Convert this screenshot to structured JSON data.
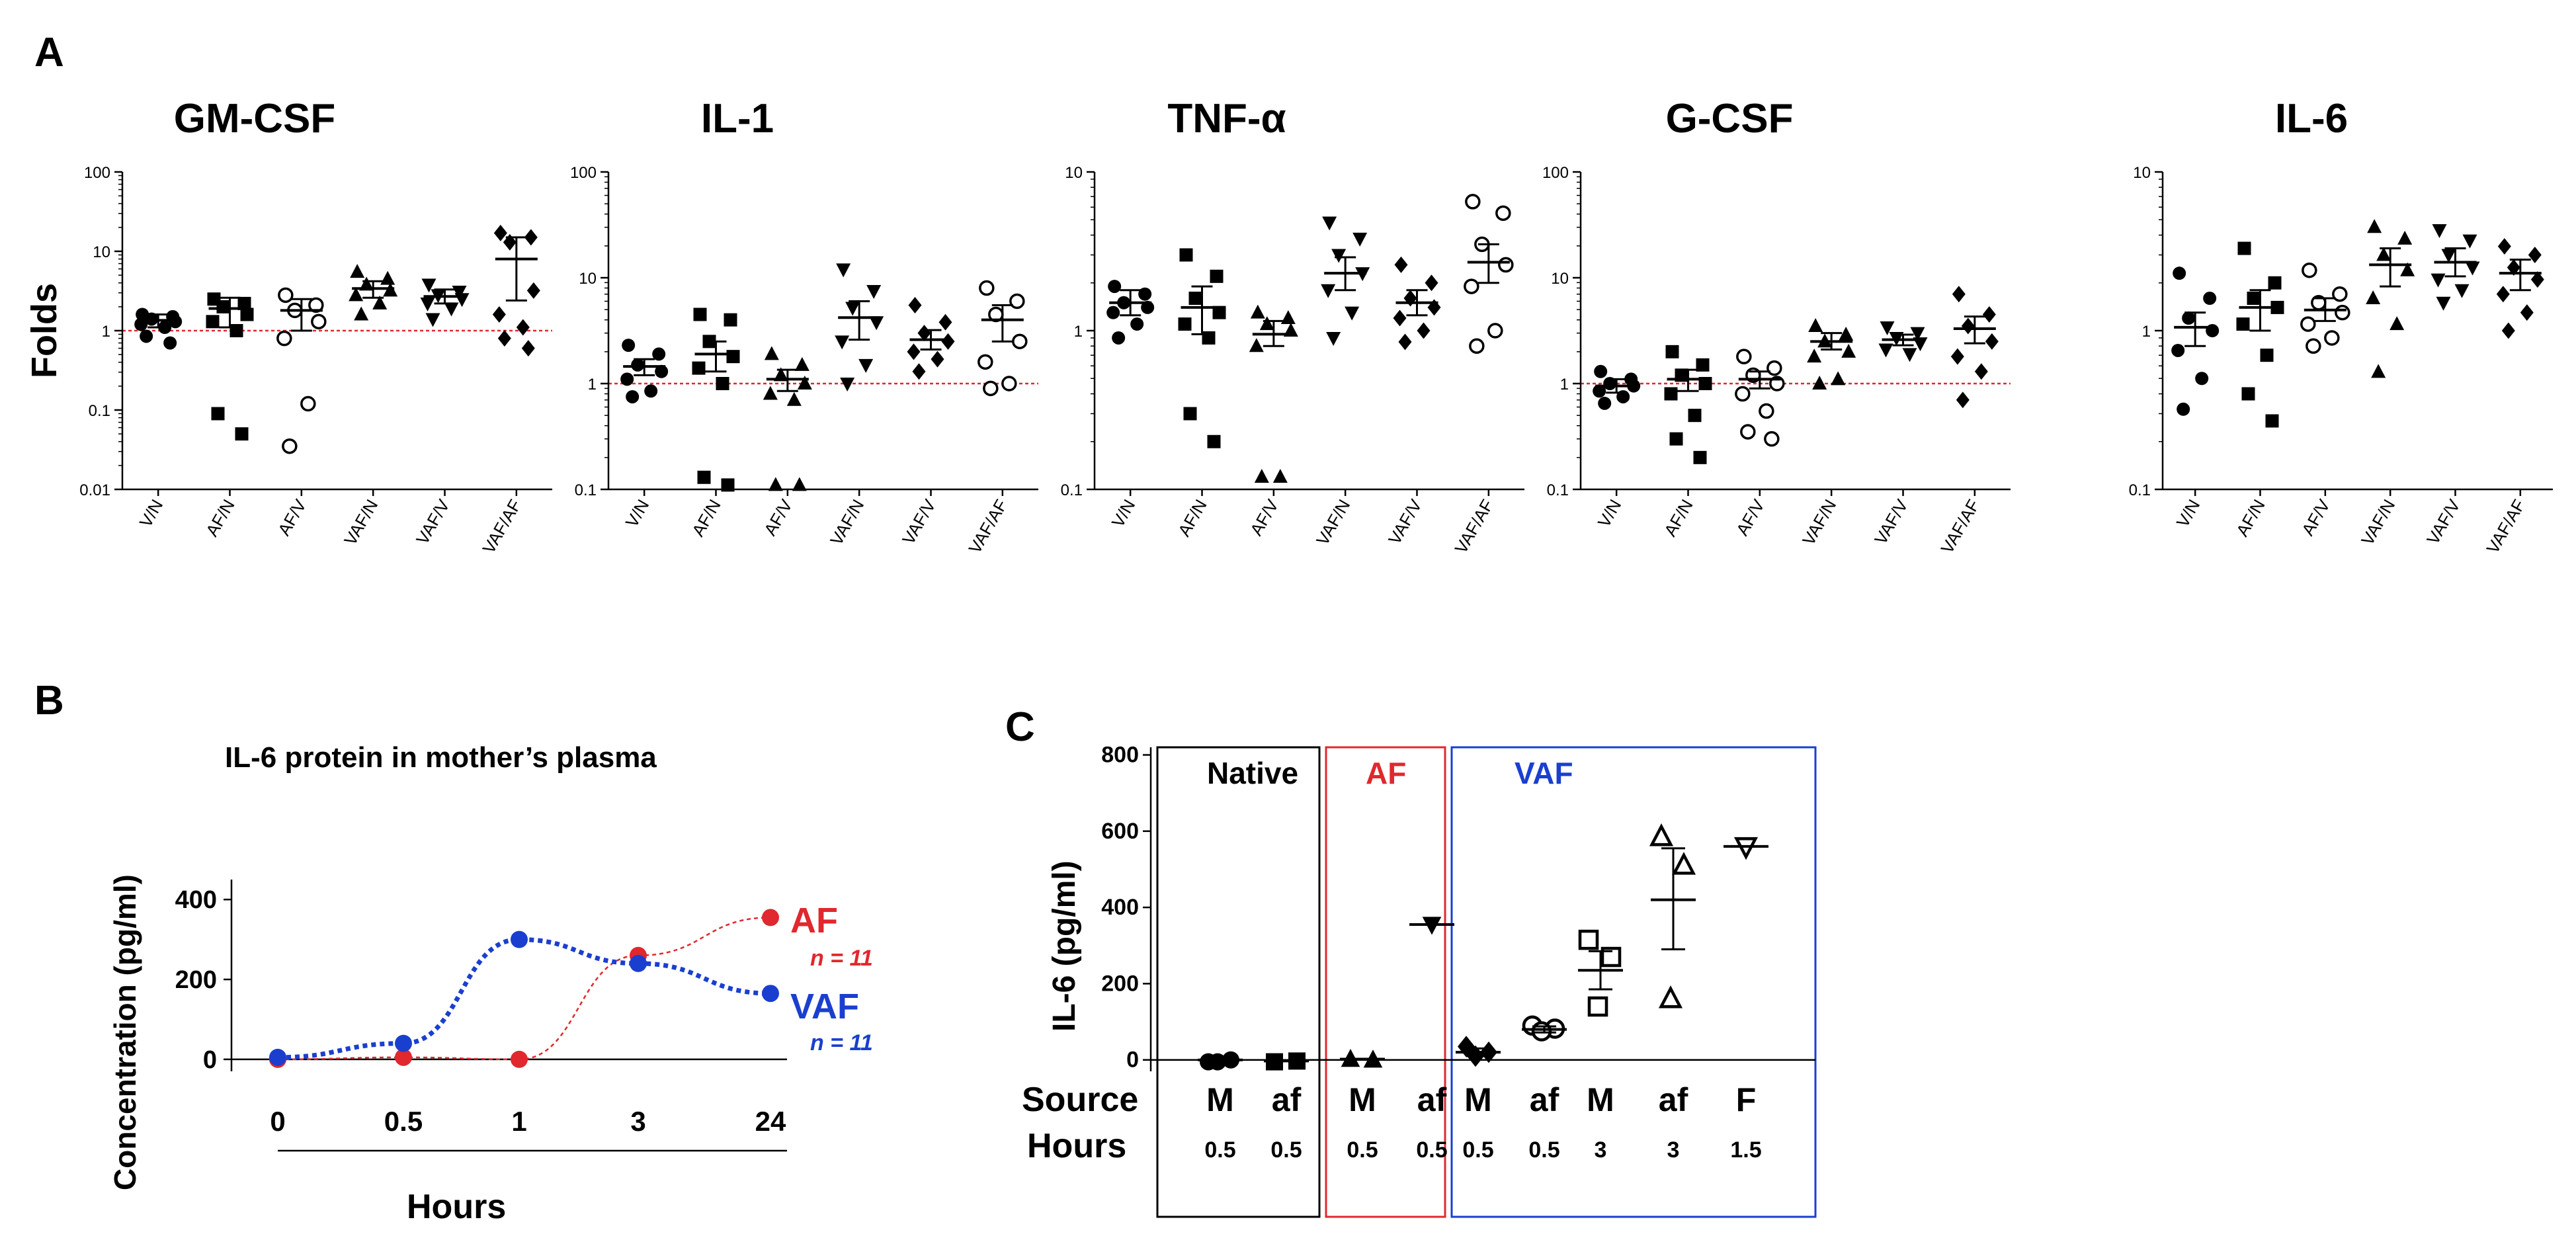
{
  "panel_labels": {
    "a": "A",
    "b": "B",
    "c": "C"
  },
  "chart_data": [
    {
      "id": "A1",
      "type": "scatter",
      "title": "GM-CSF",
      "ylabel": "Folds",
      "scale": "log",
      "ylim": [
        0.01,
        100
      ],
      "ticks": [
        0.01,
        0.1,
        1,
        10,
        100
      ],
      "tick_labels": [
        "0.01",
        "0.1",
        "1",
        "10",
        "100"
      ],
      "ref_line": 1,
      "ref_color": "#e0282e",
      "categories": [
        "V/N",
        "AF/N",
        "AF/V",
        "VAF/N",
        "VAF/V",
        "VAF/AF"
      ],
      "markers": [
        "circle",
        "square",
        "open-circle",
        "triangle",
        "inv-triangle",
        "diamond"
      ],
      "series": [
        {
          "name": "V/N",
          "mean": 1.35,
          "sem_low": 1.1,
          "sem_high": 1.6,
          "points": [
            1.6,
            1.4,
            1.3,
            1.2,
            1.1,
            0.85,
            0.7,
            1.5
          ]
        },
        {
          "name": "AF/N",
          "mean": 1.9,
          "sem_low": 1.1,
          "sem_high": 2.6,
          "points": [
            2.5,
            2.2,
            2.0,
            1.6,
            1.3,
            1.0,
            0.09,
            0.05
          ]
        },
        {
          "name": "AF/V",
          "mean": 1.8,
          "sem_low": 1.0,
          "sem_high": 2.5,
          "points": [
            2.8,
            2.1,
            1.8,
            1.3,
            0.8,
            0.12,
            0.035
          ]
        },
        {
          "name": "VAF/N",
          "mean": 3.4,
          "sem_low": 2.6,
          "sem_high": 4.2,
          "points": [
            5.5,
            4.5,
            3.8,
            3.2,
            2.8,
            2.2,
            1.6
          ]
        },
        {
          "name": "VAF/V",
          "mean": 2.7,
          "sem_low": 2.2,
          "sem_high": 3.3,
          "points": [
            3.8,
            3.1,
            2.8,
            2.5,
            2.2,
            1.9,
            1.4
          ]
        },
        {
          "name": "VAF/AF",
          "mean": 8.0,
          "sem_low": 2.4,
          "sem_high": 15,
          "points": [
            17,
            15,
            13,
            3.2,
            1.6,
            1.1,
            0.8,
            0.6
          ]
        }
      ]
    },
    {
      "id": "A2",
      "type": "scatter",
      "title": "IL-1",
      "ylabel": "",
      "scale": "log",
      "ylim": [
        0.1,
        100
      ],
      "ticks": [
        0.1,
        1,
        10,
        100
      ],
      "tick_labels": [
        "0.1",
        "1",
        "10",
        "100"
      ],
      "ref_line": 1,
      "ref_color": "#e0282e",
      "categories": [
        "V/N",
        "AF/N",
        "AF/V",
        "VAF/N",
        "VAF/V",
        "VAF/AF"
      ],
      "markers": [
        "circle",
        "square",
        "triangle",
        "inv-triangle",
        "diamond",
        "open-circle"
      ],
      "series": [
        {
          "name": "V/N",
          "mean": 1.45,
          "sem_low": 1.2,
          "sem_high": 1.7,
          "points": [
            2.3,
            1.9,
            1.5,
            1.3,
            1.1,
            0.85,
            0.75
          ]
        },
        {
          "name": "AF/N",
          "mean": 1.9,
          "sem_low": 1.3,
          "sem_high": 2.5,
          "points": [
            4.5,
            4.0,
            2.5,
            1.8,
            1.4,
            1.0,
            0.13,
            0.11
          ]
        },
        {
          "name": "AF/V",
          "mean": 1.1,
          "sem_low": 0.85,
          "sem_high": 1.35,
          "points": [
            1.9,
            1.5,
            1.2,
            1.0,
            0.8,
            0.7,
            0.11,
            0.11
          ]
        },
        {
          "name": "VAF/N",
          "mean": 4.2,
          "sem_low": 2.6,
          "sem_high": 6.0,
          "points": [
            12,
            7.5,
            5.2,
            3.8,
            2.5,
            1.5,
            1.0
          ]
        },
        {
          "name": "VAF/V",
          "mean": 2.6,
          "sem_low": 2.1,
          "sem_high": 3.2,
          "points": [
            5.5,
            3.8,
            3.0,
            2.5,
            2.0,
            1.7,
            1.3
          ]
        },
        {
          "name": "VAF/AF",
          "mean": 4.0,
          "sem_low": 2.5,
          "sem_high": 5.5,
          "points": [
            8.0,
            6.0,
            4.5,
            2.5,
            1.6,
            1.0,
            0.9
          ]
        }
      ]
    },
    {
      "id": "A3",
      "type": "scatter",
      "title": "TNF-α",
      "ylabel": "",
      "scale": "log",
      "ylim": [
        0.1,
        10
      ],
      "ticks": [
        0.1,
        1,
        10
      ],
      "tick_labels": [
        "0.1",
        "1",
        "10"
      ],
      "ref_line": null,
      "ref_color": "#e0282e",
      "categories": [
        "V/N",
        "AF/N",
        "AF/V",
        "VAF/N",
        "VAF/V",
        "VAF/AF"
      ],
      "markers": [
        "circle",
        "square",
        "triangle",
        "inv-triangle",
        "diamond",
        "open-circle"
      ],
      "series": [
        {
          "name": "V/N",
          "mean": 1.5,
          "sem_low": 1.25,
          "sem_high": 1.8,
          "points": [
            1.9,
            1.7,
            1.5,
            1.4,
            1.3,
            1.1,
            0.9
          ]
        },
        {
          "name": "AF/N",
          "mean": 1.4,
          "sem_low": 0.95,
          "sem_high": 1.9,
          "points": [
            3.0,
            2.2,
            1.6,
            1.3,
            1.1,
            0.9,
            0.3,
            0.2
          ]
        },
        {
          "name": "AF/V",
          "mean": 0.95,
          "sem_low": 0.8,
          "sem_high": 1.15,
          "points": [
            1.3,
            1.2,
            1.1,
            1.0,
            0.8,
            0.12,
            0.12
          ]
        },
        {
          "name": "VAF/N",
          "mean": 2.3,
          "sem_low": 1.8,
          "sem_high": 2.9,
          "points": [
            4.8,
            3.8,
            3.0,
            2.3,
            1.8,
            1.3,
            0.9
          ]
        },
        {
          "name": "VAF/V",
          "mean": 1.5,
          "sem_low": 1.25,
          "sem_high": 1.8,
          "points": [
            2.6,
            2.0,
            1.6,
            1.4,
            1.2,
            1.0,
            0.85
          ]
        },
        {
          "name": "VAF/AF",
          "mean": 2.7,
          "sem_low": 2.0,
          "sem_high": 3.5,
          "points": [
            6.5,
            5.5,
            3.5,
            2.6,
            1.9,
            1.0,
            0.8
          ]
        }
      ]
    },
    {
      "id": "A4",
      "type": "scatter",
      "title": "G-CSF",
      "ylabel": "",
      "scale": "log",
      "ylim": [
        0.1,
        100
      ],
      "ticks": [
        0.1,
        1,
        10,
        100
      ],
      "tick_labels": [
        "0.1",
        "1",
        "10",
        "100"
      ],
      "ref_line": 1,
      "ref_color": "#e0282e",
      "categories": [
        "V/N",
        "AF/N",
        "AF/V",
        "VAF/N",
        "VAF/V",
        "VAF/AF"
      ],
      "markers": [
        "circle",
        "square",
        "open-circle",
        "triangle",
        "inv-triangle",
        "diamond"
      ],
      "series": [
        {
          "name": "V/N",
          "mean": 0.95,
          "sem_low": 0.82,
          "sem_high": 1.1,
          "points": [
            1.3,
            1.1,
            1.0,
            0.95,
            0.85,
            0.75,
            0.65
          ]
        },
        {
          "name": "AF/N",
          "mean": 1.1,
          "sem_low": 0.85,
          "sem_high": 1.35,
          "points": [
            2.0,
            1.5,
            1.2,
            1.0,
            0.8,
            0.5,
            0.3,
            0.2
          ]
        },
        {
          "name": "AF/V",
          "mean": 1.1,
          "sem_low": 0.9,
          "sem_high": 1.3,
          "points": [
            1.8,
            1.4,
            1.2,
            1.0,
            0.8,
            0.55,
            0.35,
            0.3
          ]
        },
        {
          "name": "VAF/N",
          "mean": 2.5,
          "sem_low": 2.1,
          "sem_high": 3.0,
          "points": [
            3.5,
            2.9,
            2.5,
            2.0,
            1.8,
            1.1,
            1.0
          ]
        },
        {
          "name": "VAF/V",
          "mean": 2.6,
          "sem_low": 2.3,
          "sem_high": 2.9,
          "points": [
            3.4,
            3.0,
            2.7,
            2.4,
            2.1,
            1.9
          ]
        },
        {
          "name": "VAF/AF",
          "mean": 3.3,
          "sem_low": 2.4,
          "sem_high": 4.3,
          "points": [
            7.0,
            4.5,
            3.5,
            2.5,
            1.8,
            1.3,
            0.7
          ]
        }
      ]
    },
    {
      "id": "A5",
      "type": "scatter",
      "title": "IL-6",
      "ylabel": "",
      "scale": "log",
      "ylim": [
        0.1,
        10
      ],
      "ticks": [
        0.1,
        1,
        10
      ],
      "tick_labels": [
        "0.1",
        "1",
        "10"
      ],
      "ref_line": null,
      "ref_color": "#e0282e",
      "categories": [
        "V/N",
        "AF/N",
        "AF/V",
        "VAF/N",
        "VAF/V",
        "VAF/AF"
      ],
      "markers": [
        "circle",
        "square",
        "open-circle",
        "triangle",
        "inv-triangle",
        "diamond"
      ],
      "series": [
        {
          "name": "V/N",
          "mean": 1.05,
          "sem_low": 0.8,
          "sem_high": 1.3,
          "points": [
            2.3,
            1.6,
            1.2,
            1.0,
            0.75,
            0.5,
            0.32
          ]
        },
        {
          "name": "AF/N",
          "mean": 1.4,
          "sem_low": 1.0,
          "sem_high": 1.8,
          "points": [
            3.3,
            2.0,
            1.6,
            1.4,
            1.1,
            0.7,
            0.4,
            0.27
          ]
        },
        {
          "name": "AF/V",
          "mean": 1.35,
          "sem_low": 1.15,
          "sem_high": 1.6,
          "points": [
            2.4,
            1.7,
            1.5,
            1.3,
            1.1,
            0.9,
            0.8
          ]
        },
        {
          "name": "VAF/N",
          "mean": 2.6,
          "sem_low": 1.9,
          "sem_high": 3.3,
          "points": [
            4.5,
            3.8,
            3.0,
            2.4,
            1.6,
            1.1,
            0.55
          ]
        },
        {
          "name": "VAF/V",
          "mean": 2.7,
          "sem_low": 2.2,
          "sem_high": 3.3,
          "points": [
            4.3,
            3.7,
            3.0,
            2.5,
            2.1,
            1.8,
            1.5
          ]
        },
        {
          "name": "VAF/AF",
          "mean": 2.3,
          "sem_low": 1.8,
          "sem_high": 2.8,
          "points": [
            3.4,
            3.0,
            2.5,
            2.1,
            1.7,
            1.3,
            1.0
          ]
        }
      ]
    },
    {
      "id": "B",
      "type": "line",
      "title": "IL-6 protein in mother’s plasma",
      "xlabel": "Hours",
      "ylabel": "Concentration (pg/ml)",
      "categories": [
        "0",
        "0.5",
        "1",
        "3",
        "24"
      ],
      "ylim": [
        -30,
        450
      ],
      "ticks": [
        0,
        200,
        400
      ],
      "tick_labels": [
        "0",
        "200",
        "400"
      ],
      "series": [
        {
          "name": "AF",
          "n_label": "n = 11",
          "color": "#e0282e",
          "values": [
            0,
            5,
            0,
            260,
            355
          ]
        },
        {
          "name": "VAF",
          "n_label": "n = 11",
          "color": "#1a3fcf",
          "values": [
            5,
            40,
            300,
            240,
            165
          ]
        }
      ]
    },
    {
      "id": "C",
      "type": "scatter",
      "ylabel": "IL-6 (pg/ml)",
      "ylim": [
        -30,
        820
      ],
      "ticks": [
        0,
        200,
        400,
        600,
        800
      ],
      "tick_labels": [
        "0",
        "200",
        "400",
        "600",
        "800"
      ],
      "row_labels": {
        "source": "Source",
        "hours": "Hours"
      },
      "groups": [
        {
          "name": "Native",
          "color": "#000000"
        },
        {
          "name": "AF",
          "color": "#e0282e"
        },
        {
          "name": "VAF",
          "color": "#1a3fcf"
        }
      ],
      "columns": [
        {
          "source": "M",
          "hours": "0.5",
          "marker": "circle",
          "mean": 0,
          "sem_low": 0,
          "sem_high": 0,
          "points": [
            -5,
            0,
            -5
          ]
        },
        {
          "source": "af",
          "hours": "0.5",
          "marker": "square",
          "mean": -3,
          "sem_low": -3,
          "sem_high": -3,
          "points": [
            -5,
            -3
          ]
        },
        {
          "source": "M",
          "hours": "0.5",
          "marker": "triangle",
          "mean": 2,
          "sem_low": 2,
          "sem_high": 2,
          "points": [
            2,
            0
          ]
        },
        {
          "source": "af",
          "hours": "0.5",
          "marker": "inv-triangle",
          "mean": 355,
          "sem_low": 355,
          "sem_high": 355,
          "points": [
            355
          ]
        },
        {
          "source": "M",
          "hours": "0.5",
          "marker": "diamond",
          "mean": 20,
          "sem_low": 10,
          "sem_high": 30,
          "points": [
            35,
            20,
            10
          ]
        },
        {
          "source": "af",
          "hours": "0.5",
          "marker": "open-circle",
          "mean": 80,
          "sem_low": 72,
          "sem_high": 88,
          "points": [
            90,
            82,
            75
          ]
        },
        {
          "source": "M",
          "hours": "3",
          "marker": "open-square",
          "mean": 235,
          "sem_low": 185,
          "sem_high": 285,
          "points": [
            315,
            270,
            140
          ]
        },
        {
          "source": "af",
          "hours": "3",
          "marker": "open-triangle",
          "mean": 420,
          "sem_low": 290,
          "sem_high": 555,
          "points": [
            585,
            510,
            160
          ]
        },
        {
          "source": "F",
          "hours": "1.5",
          "marker": "open-inv-triangle",
          "mean": 560,
          "sem_low": 560,
          "sem_high": 560,
          "points": [
            560
          ]
        }
      ]
    }
  ]
}
